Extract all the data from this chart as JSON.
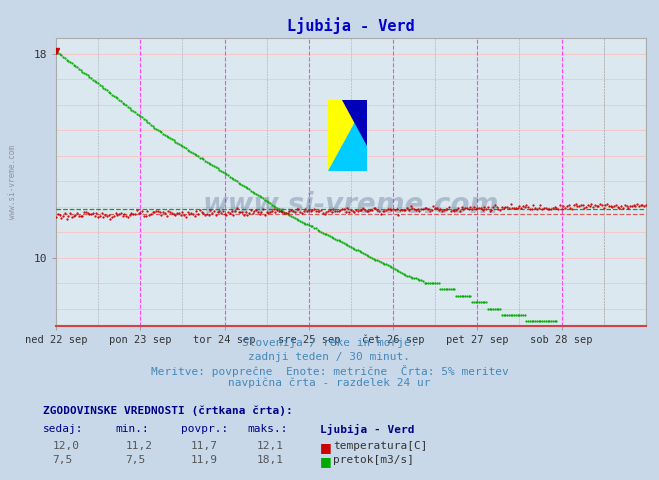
{
  "title": "Ljubija - Verd",
  "title_color": "#0000cc",
  "bg_color": "#c8d8e8",
  "plot_bg_color": "#dce8f0",
  "xlim": [
    0,
    336
  ],
  "ylim_bottom": 7.3,
  "ylim_top": 18.6,
  "yticks": [
    10,
    18
  ],
  "day_labels": [
    "ned 22 sep",
    "pon 23 sep",
    "tor 24 sep",
    "sre 25 sep",
    "čet 26 sep",
    "pet 27 sep",
    "sob 28 sep"
  ],
  "day_positions": [
    0,
    48,
    96,
    144,
    192,
    240,
    288
  ],
  "grid_minor_positions": [
    24,
    72,
    120,
    168,
    216,
    264,
    312
  ],
  "temp_avg": 11.7,
  "flow_avg": 11.9,
  "temp_color": "#cc0000",
  "flow_color": "#00aa00",
  "temp_dashed_color": "#dd4444",
  "flow_dashed_color": "#008800",
  "watermark_color": "#1a3a6a",
  "subtitle_color": "#4488bb",
  "table_header_color": "#000088",
  "subtitle1": "Slovenija / reke in morje.",
  "subtitle2": "zadnji teden / 30 minut.",
  "subtitle3": "Meritve: povprečne  Enote: metrične  Črta: 5% meritev",
  "subtitle4": "navpična črta - razdelek 24 ur",
  "table_title": "ZGODOVINSKE VREDNOSTI (črtkana črta):",
  "col_headers": [
    "sedaj:",
    "min.:",
    "povpr.:",
    "maks.:",
    "Ljubija - Verd"
  ],
  "temp_row": [
    "12,0",
    "11,2",
    "11,7",
    "12,1",
    "temperatura[C]"
  ],
  "flow_row": [
    "7,5",
    "7,5",
    "11,9",
    "18,1",
    "pretok[m3/s]"
  ]
}
